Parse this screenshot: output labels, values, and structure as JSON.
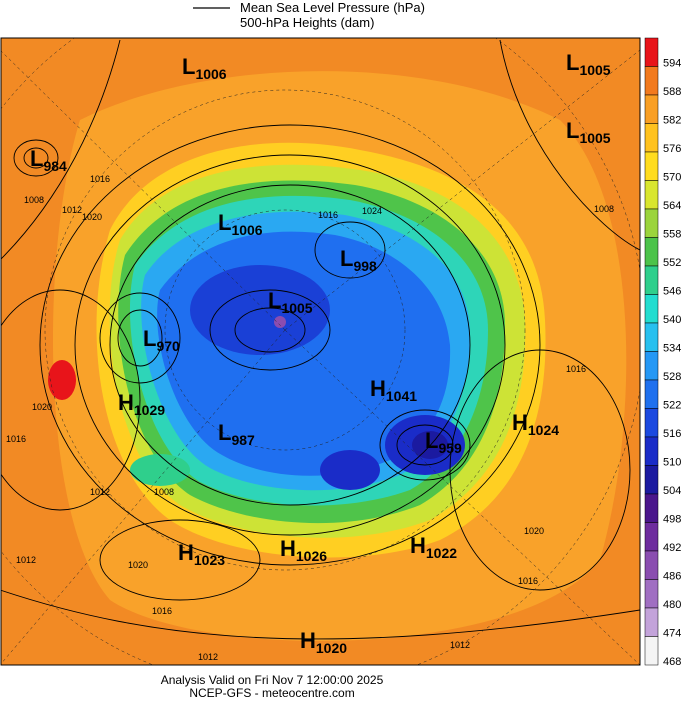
{
  "legend": {
    "line_label": "Mean Sea Level Pressure (hPa)",
    "fill_label": "500-hPa Heights (dam)"
  },
  "colorbar": {
    "ticks": [
      594,
      588,
      582,
      576,
      570,
      564,
      558,
      552,
      546,
      540,
      534,
      528,
      522,
      516,
      510,
      504,
      498,
      492,
      486,
      480,
      474,
      468
    ],
    "colors": [
      "#e8141a",
      "#f27a1e",
      "#f99f24",
      "#ffc21f",
      "#ffdc1e",
      "#d9e62f",
      "#9bd43c",
      "#4cc34a",
      "#2fcf8c",
      "#22ddd0",
      "#27c0ef",
      "#2598f5",
      "#1f70ee",
      "#1b49e0",
      "#1a2cc8",
      "#1b1aa0",
      "#4a168c",
      "#6e2c9e",
      "#8a4db0",
      "#a06fc2",
      "#c3a3da",
      "#f4f4f4"
    ]
  },
  "centers": [
    {
      "type": "L",
      "value": 1006
    },
    {
      "type": "L",
      "value": 1005
    },
    {
      "type": "L",
      "value": 1005
    },
    {
      "type": "L",
      "value": 984
    },
    {
      "type": "L",
      "value": 1006
    },
    {
      "type": "L",
      "value": 998
    },
    {
      "type": "L",
      "value": 1005
    },
    {
      "type": "L",
      "value": 970
    },
    {
      "type": "H",
      "value": 1041
    },
    {
      "type": "H",
      "value": 1029
    },
    {
      "type": "H",
      "value": 1024
    },
    {
      "type": "L",
      "value": 987
    },
    {
      "type": "L",
      "value": 959
    },
    {
      "type": "H",
      "value": 1023
    },
    {
      "type": "H",
      "value": 1026
    },
    {
      "type": "H",
      "value": 1022
    },
    {
      "type": "H",
      "value": 1020
    }
  ],
  "isobar_labels": [
    1016,
    1008,
    1012,
    1020,
    1016,
    1024,
    1008,
    1016,
    1020,
    1016,
    1012,
    1008,
    1012,
    1020,
    1016,
    1012,
    1012,
    1016,
    1020
  ],
  "footer": {
    "line1": "Analysis Valid on Fri Nov  7 12:00:00 2025",
    "line2": "NCEP-GFS  - meteocentre.com"
  }
}
